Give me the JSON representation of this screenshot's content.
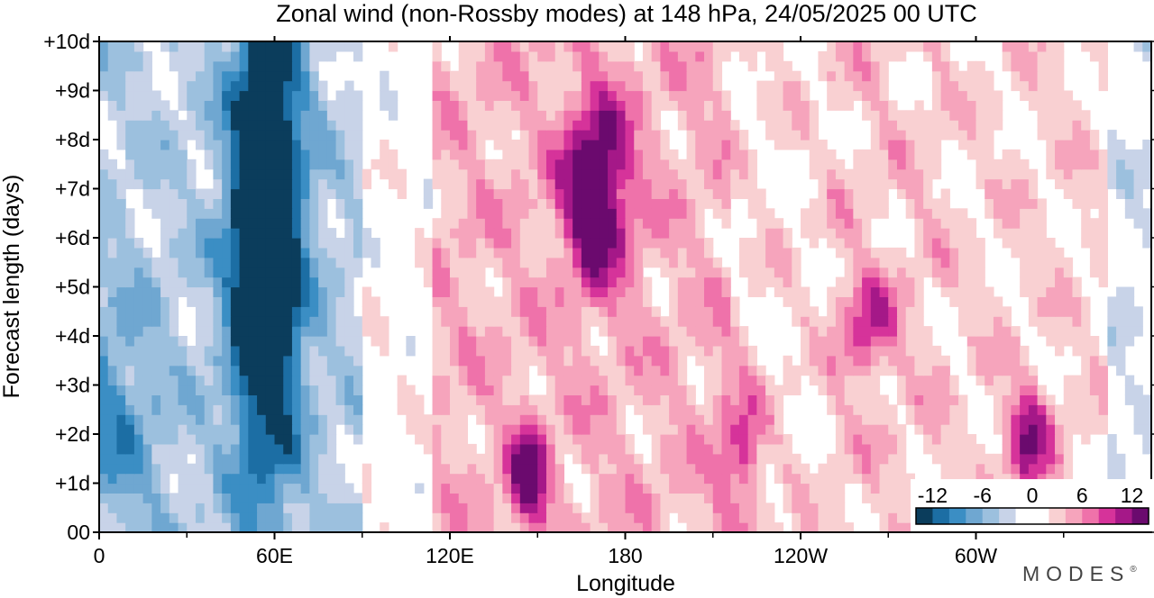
{
  "chart_data": {
    "type": "heatmap",
    "title": "Zonal wind (non-Rossby modes) at 148 hPa,  24/05/2025  00 UTC",
    "xlabel": "Longitude",
    "ylabel": "Forecast length (days)",
    "x_range_deg": [
      0,
      360
    ],
    "y_range_days": [
      0,
      10
    ],
    "x_ticks": [
      {
        "deg": 0,
        "label": "0"
      },
      {
        "deg": 60,
        "label": "60E"
      },
      {
        "deg": 120,
        "label": "120E"
      },
      {
        "deg": 180,
        "label": "180"
      },
      {
        "deg": 240,
        "label": "120W"
      },
      {
        "deg": 300,
        "label": "60W"
      }
    ],
    "x_minor_ticks_deg": [
      30,
      90,
      150,
      210,
      270,
      330
    ],
    "y_ticks": [
      {
        "day": 0,
        "label": "00"
      },
      {
        "day": 1,
        "label": "+1d"
      },
      {
        "day": 2,
        "label": "+2d"
      },
      {
        "day": 3,
        "label": "+3d"
      },
      {
        "day": 4,
        "label": "+4d"
      },
      {
        "day": 5,
        "label": "+5d"
      },
      {
        "day": 6,
        "label": "+6d"
      },
      {
        "day": 7,
        "label": "+7d"
      },
      {
        "day": 8,
        "label": "+8d"
      },
      {
        "day": 9,
        "label": "+9d"
      },
      {
        "day": 10,
        "label": "+10d"
      }
    ],
    "colorbar": {
      "levels": [
        -14,
        -12,
        -10,
        -8,
        -6,
        -4,
        -2,
        2,
        4,
        6,
        8,
        10,
        12,
        14
      ],
      "colors": [
        "#0b3d5c",
        "#1c6ea4",
        "#3b8ec4",
        "#6fa7d1",
        "#9cc0de",
        "#c8d3e8",
        "#ffffff",
        "#f9d0d2",
        "#f6a4bc",
        "#ef72aa",
        "#d6339a",
        "#a51888",
        "#6b0a6e"
      ],
      "tick_labels": [
        {
          "value": -12,
          "label": "-12"
        },
        {
          "value": -6,
          "label": "-6"
        },
        {
          "value": 0,
          "label": "0"
        },
        {
          "value": 6,
          "label": "6"
        },
        {
          "value": 12,
          "label": "12"
        }
      ]
    },
    "features": [
      {
        "type": "easterly",
        "lon": 57,
        "day": 6,
        "amp": 19,
        "width_deg": 12,
        "width_days": 4.8
      },
      {
        "type": "easterly",
        "lon": 3,
        "day": 2.2,
        "amp": 5,
        "width_deg": 18,
        "width_days": 2.5
      },
      {
        "type": "westerly",
        "lon": 170,
        "day": 7,
        "amp": 12.5,
        "width_deg": 11,
        "width_days": 1.8
      },
      {
        "type": "westerly",
        "lon": 147,
        "day": 1.1,
        "amp": 9,
        "width_deg": 7,
        "width_days": 1.1
      },
      {
        "type": "westerly",
        "lon": 318,
        "day": 1.9,
        "amp": 9,
        "width_deg": 8,
        "width_days": 1.1
      },
      {
        "type": "westerly",
        "lon": 263,
        "day": 4.2,
        "amp": 7,
        "width_deg": 9,
        "width_days": 1
      },
      {
        "type": "westerly",
        "lon": 220,
        "day": 1.6,
        "amp": 7,
        "width_deg": 7,
        "width_days": 1.6
      }
    ]
  },
  "branding": {
    "text": "MODES",
    "mark": "®"
  }
}
